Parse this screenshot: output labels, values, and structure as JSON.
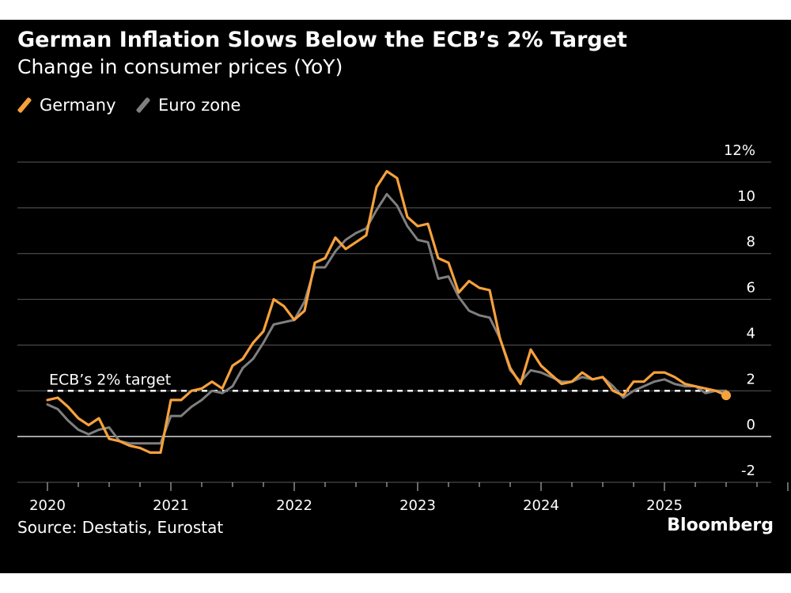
{
  "header": {
    "title": "German Inflation Slows Below the ECB’s 2% Target",
    "subtitle": "Change in consumer prices (YoY)"
  },
  "footer": {
    "source": "Source: Destatis, Eurostat",
    "brand": "Bloomberg"
  },
  "colors": {
    "background": "#000000",
    "germany": "#f7a13c",
    "eurozone": "#7f7f7f",
    "grid": "#5a5a5a",
    "text": "#ffffff"
  },
  "chart_data": {
    "type": "line",
    "title": "German Inflation Slows Below the ECB’s 2% Target",
    "subtitle": "Change in consumer prices (YoY)",
    "xlabel": "",
    "ylabel": "",
    "ylim": [
      -2,
      12
    ],
    "yticks": [
      -2,
      0,
      2,
      4,
      6,
      8,
      10,
      12
    ],
    "ytick_labels": [
      "-2",
      "0",
      "2",
      "4",
      "6",
      "8",
      "10",
      "12%"
    ],
    "y_axis_side": "right",
    "xticks": [
      2020,
      2021,
      2022,
      2023,
      2024,
      2025
    ],
    "xtick_labels": [
      "2020",
      "2021",
      "2022",
      "2023",
      "2024",
      "2025"
    ],
    "x_start": "2020-01",
    "grid": true,
    "legend": {
      "position": "top-left",
      "entries": [
        "Germany",
        "Euro zone"
      ]
    },
    "series": [
      {
        "name": "Germany",
        "color": "#f7a13c",
        "values": [
          1.6,
          1.7,
          1.3,
          0.8,
          0.5,
          0.8,
          -0.1,
          -0.2,
          -0.4,
          -0.5,
          -0.7,
          -0.7,
          1.6,
          1.6,
          2.0,
          2.1,
          2.4,
          2.1,
          3.1,
          3.4,
          4.1,
          4.6,
          6.0,
          5.7,
          5.1,
          5.5,
          7.6,
          7.8,
          8.7,
          8.2,
          8.5,
          8.8,
          10.9,
          11.6,
          11.3,
          9.6,
          9.2,
          9.3,
          7.8,
          7.6,
          6.3,
          6.8,
          6.5,
          6.4,
          4.3,
          3.0,
          2.3,
          3.8,
          3.1,
          2.7,
          2.3,
          2.4,
          2.8,
          2.5,
          2.6,
          2.0,
          1.8,
          2.4,
          2.4,
          2.8,
          2.8,
          2.6,
          2.3,
          2.2,
          2.1,
          2.0,
          1.8
        ]
      },
      {
        "name": "Euro zone",
        "color": "#7f7f7f",
        "values": [
          1.4,
          1.2,
          0.7,
          0.3,
          0.1,
          0.3,
          0.4,
          -0.2,
          -0.3,
          -0.3,
          -0.3,
          -0.3,
          0.9,
          0.9,
          1.3,
          1.6,
          2.0,
          1.9,
          2.2,
          3.0,
          3.4,
          4.1,
          4.9,
          5.0,
          5.1,
          5.9,
          7.4,
          7.4,
          8.1,
          8.6,
          8.9,
          9.1,
          9.9,
          10.6,
          10.1,
          9.2,
          8.6,
          8.5,
          6.9,
          7.0,
          6.1,
          5.5,
          5.3,
          5.2,
          4.3,
          2.9,
          2.4,
          2.9,
          2.8,
          2.6,
          2.4,
          2.4,
          2.6,
          2.5,
          2.6,
          2.2,
          1.7,
          2.0,
          2.2,
          2.4,
          2.5,
          2.3,
          2.2,
          2.2,
          1.9,
          2.0,
          2.0
        ]
      }
    ],
    "end_marker": {
      "series": "Germany",
      "value": 1.8
    },
    "annotations": [
      {
        "label": "ECB’s 2% target",
        "y": 2,
        "style": "dashed",
        "color": "#ffffff"
      }
    ]
  }
}
